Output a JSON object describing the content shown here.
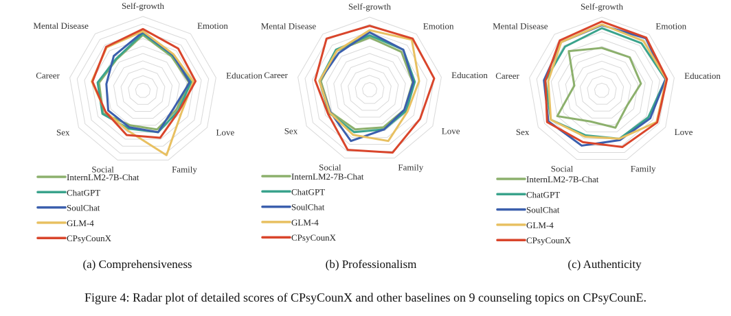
{
  "caption": "Figure 4: Radar plot of detailed scores of CPsyCounX and other baselines on 9 counseling topics on CPsyCounE.",
  "chart_data": [
    {
      "type": "radar",
      "subcaption": "(a) Comprehensiveness",
      "axes": [
        "Self-growth",
        "Emotion",
        "Education",
        "Love",
        "Family",
        "Social",
        "Sex",
        "Career",
        "Mental Disease"
      ],
      "rlim": [
        0,
        1
      ],
      "grid": true,
      "legend_position": "bottom-left",
      "series": [
        {
          "name": "InternLM2-7B-Chat",
          "color": "#8cb06c",
          "values": [
            0.75,
            0.6,
            0.63,
            0.52,
            0.56,
            0.5,
            0.62,
            0.6,
            0.55
          ]
        },
        {
          "name": "ChatGPT",
          "color": "#3aa38c",
          "values": [
            0.77,
            0.62,
            0.66,
            0.55,
            0.6,
            0.55,
            0.63,
            0.62,
            0.56
          ]
        },
        {
          "name": "SoulChat",
          "color": "#3b5fad",
          "values": [
            0.79,
            0.63,
            0.64,
            0.48,
            0.6,
            0.53,
            0.54,
            0.5,
            0.61
          ]
        },
        {
          "name": "GLM-4",
          "color": "#e8c061",
          "values": [
            0.8,
            0.64,
            0.69,
            0.6,
            0.93,
            0.58,
            0.58,
            0.7,
            0.76
          ]
        },
        {
          "name": "CPsyCounX",
          "color": "#d9452b",
          "values": [
            0.83,
            0.74,
            0.72,
            0.56,
            0.68,
            0.64,
            0.58,
            0.69,
            0.77
          ]
        }
      ]
    },
    {
      "type": "radar",
      "subcaption": "(b) Professionalism",
      "axes": [
        "Self-growth",
        "Emotion",
        "Education",
        "Love",
        "Family",
        "Social",
        "Sex",
        "Career",
        "Mental Disease"
      ],
      "rlim": [
        0,
        1
      ],
      "grid": true,
      "legend_position": "bottom-left",
      "series": [
        {
          "name": "InternLM2-7B-Chat",
          "color": "#8cb06c",
          "values": [
            0.72,
            0.68,
            0.6,
            0.55,
            0.55,
            0.58,
            0.62,
            0.68,
            0.7
          ]
        },
        {
          "name": "ChatGPT",
          "color": "#3aa38c",
          "values": [
            0.75,
            0.72,
            0.63,
            0.58,
            0.58,
            0.62,
            0.64,
            0.7,
            0.72
          ]
        },
        {
          "name": "SoulChat",
          "color": "#3b5fad",
          "values": [
            0.79,
            0.72,
            0.61,
            0.55,
            0.58,
            0.75,
            0.62,
            0.7,
            0.66
          ]
        },
        {
          "name": "GLM-4",
          "color": "#e8c061",
          "values": [
            0.82,
            0.9,
            0.69,
            0.6,
            0.75,
            0.66,
            0.63,
            0.7,
            0.7
          ]
        },
        {
          "name": "CPsyCounX",
          "color": "#d9452b",
          "values": [
            0.88,
            0.92,
            0.9,
            0.8,
            0.92,
            0.88,
            0.66,
            0.76,
            0.92
          ]
        }
      ]
    },
    {
      "type": "radar",
      "subcaption": "(c) Authenticity",
      "axes": [
        "Self-growth",
        "Emotion",
        "Education",
        "Love",
        "Family",
        "Social",
        "Sex",
        "Career",
        "Mental Disease"
      ],
      "rlim": [
        0,
        1
      ],
      "grid": true,
      "legend_position": "bottom-left",
      "series": [
        {
          "name": "InternLM2-7B-Chat",
          "color": "#8cb06c",
          "values": [
            0.58,
            0.59,
            0.54,
            0.4,
            0.54,
            0.45,
            0.7,
            0.38,
            0.7
          ]
        },
        {
          "name": "ChatGPT",
          "color": "#3aa38c",
          "values": [
            0.85,
            0.84,
            0.88,
            0.73,
            0.7,
            0.65,
            0.8,
            0.78,
            0.78
          ]
        },
        {
          "name": "SoulChat",
          "color": "#3b5fad",
          "values": [
            0.89,
            0.93,
            0.88,
            0.76,
            0.72,
            0.8,
            0.84,
            0.8,
            0.86
          ]
        },
        {
          "name": "GLM-4",
          "color": "#e8c061",
          "values": [
            0.9,
            0.88,
            0.89,
            0.86,
            0.7,
            0.67,
            0.8,
            0.74,
            0.86
          ]
        },
        {
          "name": "CPsyCounX",
          "color": "#d9452b",
          "values": [
            0.94,
            0.94,
            0.9,
            0.87,
            0.82,
            0.75,
            0.86,
            0.78,
            0.89
          ]
        }
      ]
    }
  ]
}
